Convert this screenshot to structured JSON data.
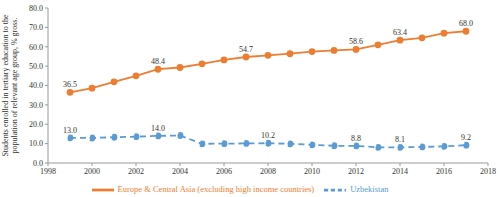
{
  "chart_data": {
    "type": "line",
    "y_label": "Students enrolled in tertiary education  to the population of relevant age group, % gross.",
    "x": [
      1999,
      2000,
      2001,
      2002,
      2003,
      2004,
      2005,
      2006,
      2007,
      2008,
      2009,
      2010,
      2011,
      2012,
      2013,
      2014,
      2015,
      2016,
      2017
    ],
    "series": [
      {
        "name": "Uzbekistan",
        "color": "#5b9bd5",
        "marker": "circle",
        "line_style": "dashed",
        "values": [
          13.0,
          12.9,
          13.3,
          13.6,
          14.0,
          14.2,
          9.9,
          10.0,
          10.1,
          10.2,
          9.9,
          9.4,
          8.9,
          8.8,
          8.1,
          8.1,
          8.3,
          8.6,
          9.2
        ],
        "value_labels": [
          "13.0",
          null,
          null,
          null,
          "14.0",
          null,
          null,
          null,
          null,
          "10.2",
          null,
          null,
          null,
          "8.8",
          null,
          "8.1",
          null,
          null,
          "9.2"
        ]
      },
      {
        "name": "Europe & Central Asia (excluding high income countries)",
        "color": "#ed7d31",
        "marker": "circle",
        "line_style": "solid",
        "values": [
          36.5,
          38.6,
          41.9,
          45.0,
          48.4,
          49.3,
          51.2,
          53.2,
          54.7,
          55.6,
          56.4,
          57.5,
          58.1,
          58.6,
          61.0,
          63.4,
          64.6,
          67.0,
          68.0
        ],
        "value_labels": [
          "36.5",
          null,
          null,
          null,
          "48.4",
          null,
          null,
          null,
          "54.7",
          null,
          null,
          null,
          null,
          "58.6",
          null,
          "63.4",
          null,
          null,
          "68.0"
        ]
      }
    ],
    "xlim": [
      1998,
      2018
    ],
    "xticks": [
      1998,
      2000,
      2002,
      2004,
      2006,
      2008,
      2010,
      2012,
      2014,
      2016,
      2018
    ],
    "ylim": [
      0,
      80
    ],
    "yticks": [
      {
        "value": 0,
        "label": "0.0"
      },
      {
        "value": 10,
        "label": "10.0"
      },
      {
        "value": 20,
        "label": "20.0"
      },
      {
        "value": 30,
        "label": "30.0"
      },
      {
        "value": 40,
        "label": "40.0"
      },
      {
        "value": 50,
        "label": "50.0"
      },
      {
        "value": 60,
        "label": "60.0"
      },
      {
        "value": 70,
        "label": "70.0"
      },
      {
        "value": 80,
        "label": "80.0"
      }
    ],
    "grid": false,
    "legend": "bottom"
  }
}
